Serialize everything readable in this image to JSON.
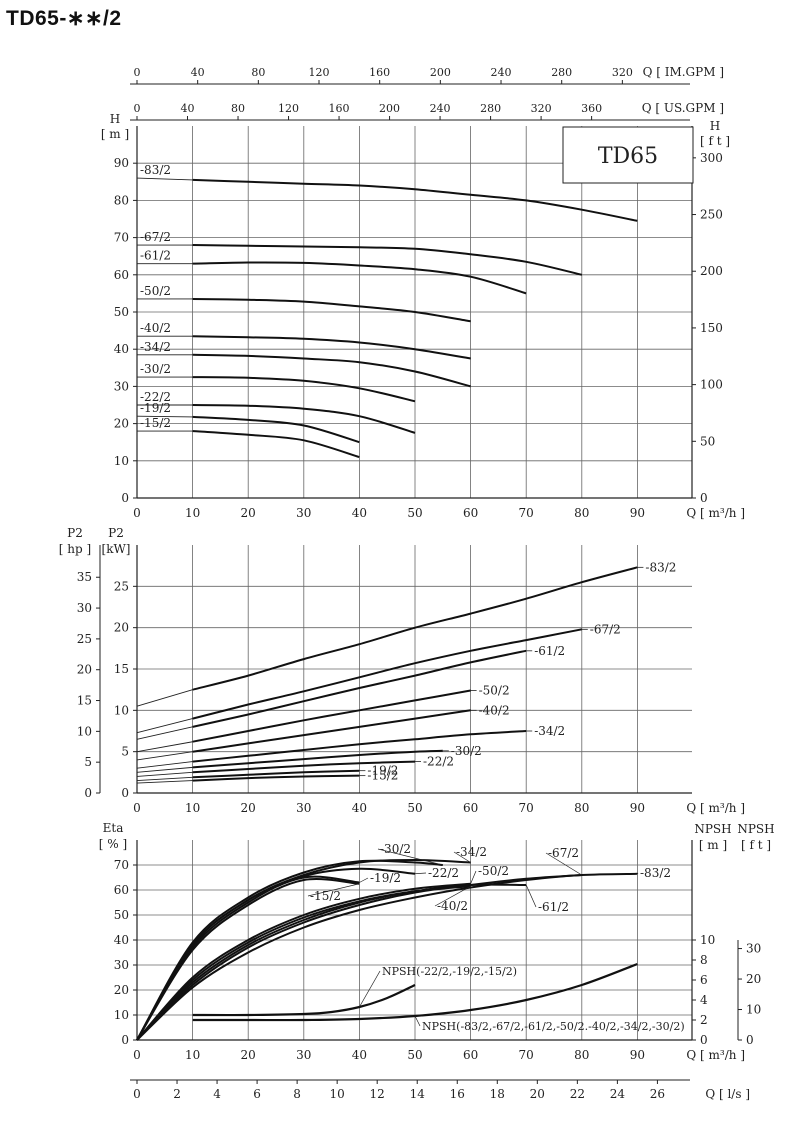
{
  "page": {
    "title": "TD65-∗∗/2",
    "model_label": "TD65"
  },
  "axes": {
    "q_im": {
      "label": "Q [ IM.GPM ]",
      "ticks": [
        "0",
        "40",
        "80",
        "120",
        "160",
        "200",
        "240",
        "280",
        "320"
      ]
    },
    "q_us": {
      "label": "Q [ US.GPM ]",
      "ticks": [
        "0",
        "40",
        "80",
        "120",
        "160",
        "200",
        "240",
        "280",
        "320",
        "360"
      ]
    },
    "q_m3h": {
      "label": "Q [ m³/h ]",
      "ticks": [
        "0",
        "10",
        "20",
        "30",
        "40",
        "50",
        "60",
        "70",
        "80",
        "90"
      ]
    },
    "q_ls": {
      "label": "Q [ l/s ]",
      "ticks": [
        "0",
        "2",
        "4",
        "6",
        "8",
        "10",
        "12",
        "14",
        "16",
        "18",
        "20",
        "22",
        "24",
        "26"
      ]
    },
    "head_m": {
      "label_top": "H",
      "label_unit": "[ m ]",
      "ticks": [
        "0",
        "10",
        "20",
        "30",
        "40",
        "50",
        "60",
        "70",
        "80",
        "90"
      ]
    },
    "head_ft": {
      "label_top": "H",
      "label_unit": "[ f t ]",
      "ticks": [
        "0",
        "50",
        "100",
        "150",
        "200",
        "250",
        "300"
      ]
    },
    "p2_hp": {
      "label_top": "P2",
      "label_unit": "[ hp ]",
      "ticks": [
        "0",
        "5",
        "10",
        "15",
        "20",
        "25",
        "30",
        "35"
      ]
    },
    "p2_kw": {
      "label_top": "P2",
      "label_unit": "[kW]",
      "ticks": [
        "0",
        "5",
        "10",
        "15",
        "20",
        "25"
      ]
    },
    "eta": {
      "label_top": "Eta",
      "label_unit": "[ % ]",
      "ticks": [
        "0",
        "10",
        "20",
        "30",
        "40",
        "50",
        "60",
        "70"
      ]
    },
    "npsh_m": {
      "label_top": "NPSH",
      "label_unit": "[ m ]",
      "ticks": [
        "0",
        "2",
        "4",
        "6",
        "8",
        "10"
      ]
    },
    "npsh_ft": {
      "label_top": "NPSH",
      "label_unit": "[ f t ]",
      "ticks": [
        "0",
        "10",
        "20",
        "30"
      ]
    }
  },
  "chart_data": [
    {
      "type": "line",
      "panel": "head",
      "title": "TD65",
      "xlabel": "Q [ m³/h ]",
      "ylabel": "H [ m ]",
      "xlim": [
        0,
        90
      ],
      "ylim": [
        0,
        90
      ],
      "grid": true,
      "series": [
        {
          "name": "-83/2",
          "x": [
            0,
            10,
            20,
            30,
            40,
            50,
            60,
            70,
            80,
            90
          ],
          "y": [
            86,
            85.5,
            85,
            84.5,
            84,
            83,
            81.5,
            80,
            77.5,
            74.5
          ]
        },
        {
          "name": "-67/2",
          "x": [
            0,
            10,
            20,
            30,
            40,
            50,
            60,
            70,
            80
          ],
          "y": [
            68,
            68,
            67.8,
            67.6,
            67.4,
            67,
            65.5,
            63.5,
            60
          ]
        },
        {
          "name": "-61/2",
          "x": [
            0,
            10,
            20,
            30,
            40,
            50,
            60,
            70
          ],
          "y": [
            63,
            63,
            63.3,
            63.2,
            62.5,
            61.5,
            59.5,
            55
          ]
        },
        {
          "name": "-50/2",
          "x": [
            0,
            10,
            20,
            30,
            40,
            50,
            60
          ],
          "y": [
            53.5,
            53.5,
            53.3,
            52.8,
            51.5,
            50,
            47.5
          ]
        },
        {
          "name": "-40/2",
          "x": [
            0,
            10,
            20,
            30,
            40,
            50,
            60
          ],
          "y": [
            43.5,
            43.5,
            43.2,
            42.8,
            41.8,
            40,
            37.5
          ]
        },
        {
          "name": "-34/2",
          "x": [
            0,
            10,
            20,
            30,
            40,
            50,
            60
          ],
          "y": [
            38.5,
            38.5,
            38.2,
            37.5,
            36.5,
            34,
            30
          ]
        },
        {
          "name": "-30/2",
          "x": [
            0,
            10,
            20,
            30,
            40,
            50
          ],
          "y": [
            32.5,
            32.5,
            32.3,
            31.5,
            29.5,
            26
          ]
        },
        {
          "name": "-22/2",
          "x": [
            0,
            10,
            20,
            30,
            40,
            50
          ],
          "y": [
            25,
            25,
            24.8,
            24,
            22,
            17.5
          ]
        },
        {
          "name": "-19/2",
          "x": [
            0,
            10,
            20,
            30,
            40
          ],
          "y": [
            22,
            21.8,
            21,
            19.5,
            15
          ]
        },
        {
          "name": "-15/2",
          "x": [
            0,
            10,
            20,
            30,
            40
          ],
          "y": [
            18,
            18,
            17,
            15.5,
            11
          ]
        }
      ]
    },
    {
      "type": "line",
      "panel": "power",
      "xlabel": "Q [ m³/h ]",
      "ylabel": "P2 [kW]",
      "xlim": [
        0,
        90
      ],
      "ylim": [
        0,
        28
      ],
      "grid": true,
      "series": [
        {
          "name": "-83/2",
          "x": [
            0,
            10,
            20,
            30,
            40,
            50,
            60,
            70,
            80,
            90
          ],
          "y": [
            10.5,
            12.5,
            14.2,
            16.2,
            18,
            20,
            21.7,
            23.5,
            25.5,
            27.3
          ]
        },
        {
          "name": "-67/2",
          "x": [
            0,
            10,
            20,
            30,
            40,
            50,
            60,
            70,
            80
          ],
          "y": [
            7.3,
            9,
            10.7,
            12.3,
            14,
            15.7,
            17.2,
            18.5,
            19.8
          ]
        },
        {
          "name": "-61/2",
          "x": [
            0,
            10,
            20,
            30,
            40,
            50,
            60,
            70
          ],
          "y": [
            6.5,
            8,
            9.5,
            11.1,
            12.7,
            14.2,
            15.8,
            17.2
          ]
        },
        {
          "name": "-50/2",
          "x": [
            0,
            10,
            20,
            30,
            40,
            50,
            60
          ],
          "y": [
            5,
            6.2,
            7.5,
            8.8,
            10,
            11.2,
            12.4
          ]
        },
        {
          "name": "-40/2",
          "x": [
            0,
            10,
            20,
            30,
            40,
            50,
            60
          ],
          "y": [
            4,
            5,
            6,
            7,
            8,
            9,
            10
          ]
        },
        {
          "name": "-34/2",
          "x": [
            0,
            10,
            20,
            30,
            40,
            50,
            60,
            70
          ],
          "y": [
            3,
            3.8,
            4.5,
            5.2,
            5.9,
            6.5,
            7.1,
            7.5
          ]
        },
        {
          "name": "-30/2",
          "x": [
            0,
            10,
            20,
            30,
            40,
            50,
            55
          ],
          "y": [
            2.5,
            3.1,
            3.6,
            4.1,
            4.6,
            5,
            5.1
          ]
        },
        {
          "name": "-22/2",
          "x": [
            0,
            10,
            20,
            30,
            40,
            50
          ],
          "y": [
            2,
            2.5,
            2.9,
            3.3,
            3.6,
            3.8
          ]
        },
        {
          "name": "-19/2",
          "x": [
            0,
            10,
            20,
            30,
            40
          ],
          "y": [
            1.5,
            1.9,
            2.2,
            2.5,
            2.7
          ]
        },
        {
          "name": "-15/2",
          "x": [
            0,
            10,
            20,
            30,
            40
          ],
          "y": [
            1.2,
            1.5,
            1.8,
            2,
            2.1
          ]
        }
      ]
    },
    {
      "type": "line",
      "panel": "efficiency",
      "xlabel": "Q [ m³/h ]",
      "ylabel": "Eta [ % ]",
      "xlim": [
        0,
        90
      ],
      "ylim": [
        0,
        75
      ],
      "grid": true,
      "series": [
        {
          "name": "-83/2",
          "x": [
            0,
            10,
            20,
            30,
            40,
            50,
            60,
            70,
            80,
            90
          ],
          "y": [
            0,
            21,
            35,
            45,
            52,
            57,
            61,
            64,
            66,
            66.5
          ]
        },
        {
          "name": "-67/2",
          "x": [
            0,
            10,
            20,
            30,
            40,
            50,
            60,
            70,
            80
          ],
          "y": [
            0,
            22,
            37,
            47,
            54,
            59,
            62,
            64.5,
            66
          ]
        },
        {
          "name": "-61/2",
          "x": [
            0,
            10,
            20,
            30,
            40,
            50,
            60,
            70
          ],
          "y": [
            0,
            23,
            38,
            48,
            55,
            59.5,
            62,
            62
          ]
        },
        {
          "name": "-50/2",
          "x": [
            0,
            10,
            20,
            30,
            40,
            50,
            60
          ],
          "y": [
            0,
            25,
            40,
            50,
            56.5,
            60.5,
            62.5
          ]
        },
        {
          "name": "-40/2",
          "x": [
            0,
            10,
            20,
            30,
            40,
            50,
            60
          ],
          "y": [
            0,
            24,
            39,
            49,
            55.5,
            59.5,
            61.5
          ]
        },
        {
          "name": "-34/2",
          "x": [
            0,
            10,
            20,
            30,
            40,
            50,
            60
          ],
          "y": [
            0,
            38,
            56,
            66,
            71,
            72,
            71
          ]
        },
        {
          "name": "-30/2",
          "x": [
            0,
            10,
            20,
            30,
            40,
            50,
            55
          ],
          "y": [
            0,
            39,
            57,
            67,
            71.5,
            71,
            70
          ]
        },
        {
          "name": "-22/2",
          "x": [
            0,
            10,
            20,
            30,
            40,
            50
          ],
          "y": [
            0,
            38,
            56,
            65.5,
            68.5,
            66.5
          ]
        },
        {
          "name": "-19/2",
          "x": [
            0,
            10,
            20,
            30,
            40
          ],
          "y": [
            0,
            37,
            55,
            65,
            63
          ]
        },
        {
          "name": "-15/2",
          "x": [
            0,
            10,
            20,
            30,
            40
          ],
          "y": [
            0,
            36,
            54,
            64,
            62.5
          ]
        }
      ]
    },
    {
      "type": "line",
      "panel": "npsh",
      "xlabel": "Q [ m³/h ]",
      "ylabel": "NPSH [ m ]",
      "xlim": [
        0,
        90
      ],
      "ylim": [
        0,
        12
      ],
      "grid": true,
      "series": [
        {
          "name": "NPSH(-22/2,-19/2,-15/2)",
          "x": [
            10,
            20,
            30,
            35,
            40,
            45,
            50
          ],
          "y": [
            2.5,
            2.5,
            2.6,
            2.8,
            3.3,
            4.2,
            5.5
          ]
        },
        {
          "name": "NPSH(-83/2,-67/2,-61/2,-50/2.-40/2,-34/2,-30/2)",
          "x": [
            10,
            20,
            30,
            40,
            50,
            60,
            70,
            80,
            90
          ],
          "y": [
            2,
            2,
            2,
            2.1,
            2.4,
            3,
            4,
            5.5,
            7.6
          ]
        }
      ]
    }
  ]
}
